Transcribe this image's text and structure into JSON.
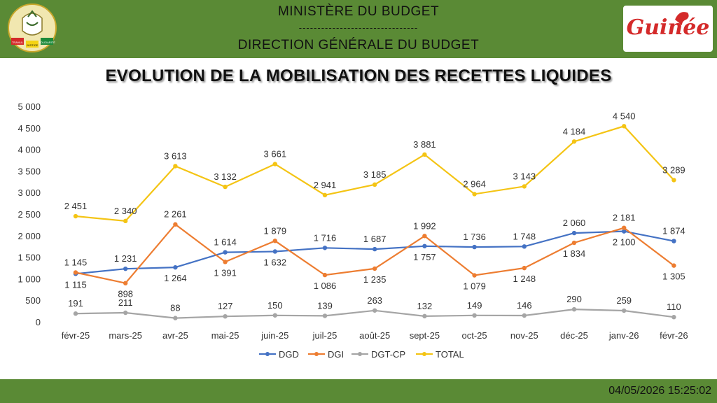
{
  "header": {
    "line1": "MINISTÈRE DU BUDGET",
    "separator": "--------------------------------",
    "line2": "DIRECTION GÉNÉRALE DU BUDGET",
    "emblem_texts": [
      "TRAVAIL",
      "JUSTICE",
      "SOLIDARITÉ"
    ],
    "logo_text": "Guinée"
  },
  "footer": {
    "timestamp": "04/05/2026 15:25:02"
  },
  "chart_data": {
    "type": "line",
    "title": "EVOLUTION DE LA MOBILISATION DES RECETTES LIQUIDES",
    "categories": [
      "févr-25",
      "mars-25",
      "avr-25",
      "mai-25",
      "juin-25",
      "juil-25",
      "août-25",
      "sept-25",
      "oct-25",
      "nov-25",
      "déc-25",
      "janv-26",
      "févr-26"
    ],
    "ylim": [
      0,
      5000
    ],
    "yticks": [
      0,
      500,
      1000,
      1500,
      2000,
      2500,
      3000,
      3500,
      4000,
      4500,
      5000
    ],
    "ytick_labels": [
      "0",
      "500",
      "1 000",
      "1 500",
      "2 000",
      "2 500",
      "3 000",
      "3 500",
      "4 000",
      "4 500",
      "5 000"
    ],
    "grid": false,
    "legend": "bottom",
    "series": [
      {
        "name": "DGD",
        "color": "#4472c4",
        "values": [
          1115,
          1231,
          1264,
          1614,
          1632,
          1716,
          1687,
          1757,
          1736,
          1748,
          2060,
          2100,
          1874
        ],
        "labels": [
          "1 115",
          "1 231",
          "1 264",
          "1 614",
          "1 632",
          "1 716",
          "1 687",
          "1 757",
          "1 736",
          "1 748",
          "2 060",
          "2 100",
          "1 874"
        ]
      },
      {
        "name": "DGI",
        "color": "#ed7d31",
        "values": [
          1145,
          898,
          2261,
          1391,
          1879,
          1086,
          1235,
          1992,
          1079,
          1248,
          1834,
          2181,
          1305
        ],
        "labels": [
          "1 145",
          "898",
          "2 261",
          "1 391",
          "1 879",
          "1 086",
          "1 235",
          "1 992",
          "1 079",
          "1 248",
          "1 834",
          "2 181",
          "1 305"
        ]
      },
      {
        "name": "DGT-CP",
        "color": "#a5a5a5",
        "values": [
          191,
          211,
          88,
          127,
          150,
          139,
          263,
          132,
          149,
          146,
          290,
          259,
          110
        ],
        "labels": [
          "191",
          "211",
          "88",
          "127",
          "150",
          "139",
          "263",
          "132",
          "149",
          "146",
          "290",
          "259",
          "110"
        ]
      },
      {
        "name": "TOTAL",
        "color": "#f4c414",
        "values": [
          2451,
          2340,
          3613,
          3132,
          3661,
          2941,
          3185,
          3881,
          2964,
          3143,
          4184,
          4540,
          3289
        ],
        "labels": [
          "2 451",
          "2 340",
          "3 613",
          "3 132",
          "3 661",
          "2 941",
          "3 185",
          "3 881",
          "2 964",
          "3 143",
          "4 184",
          "4 540",
          "3 289"
        ]
      }
    ]
  }
}
